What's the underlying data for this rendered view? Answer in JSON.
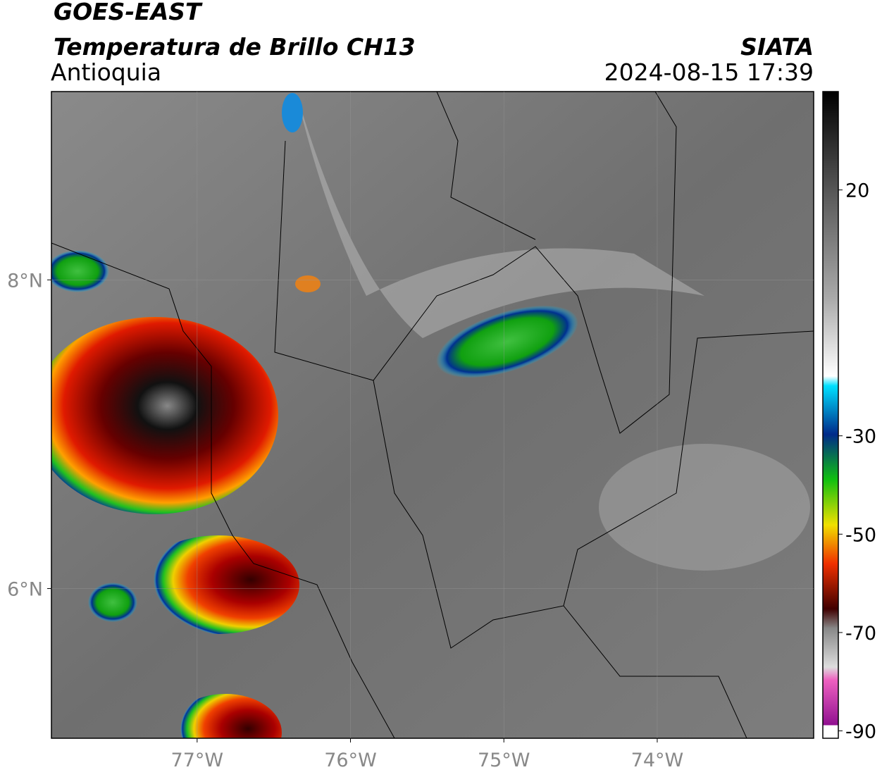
{
  "header": {
    "title": "GOES-EAST",
    "subtitle": "Temperatura de Brillo CH13",
    "region": "Antioquia",
    "source": "SIATA",
    "datetime": "2024-08-15 17:39"
  },
  "map": {
    "xlim": [
      -77.95,
      -72.98
    ],
    "ylim": [
      5.03,
      9.22
    ],
    "xticks": [
      {
        "value": -77,
        "label": "77°W"
      },
      {
        "value": -76,
        "label": "76°W"
      },
      {
        "value": -75,
        "label": "75°W"
      },
      {
        "value": -74,
        "label": "74°W"
      }
    ],
    "yticks": [
      {
        "value": 8,
        "label": "8°N"
      },
      {
        "value": 6,
        "label": "6°N"
      }
    ],
    "grid": true
  },
  "colorbar": {
    "lim": [
      -91.5,
      40
    ],
    "ticks": [
      20,
      -30,
      -50,
      -70,
      -90
    ]
  }
}
